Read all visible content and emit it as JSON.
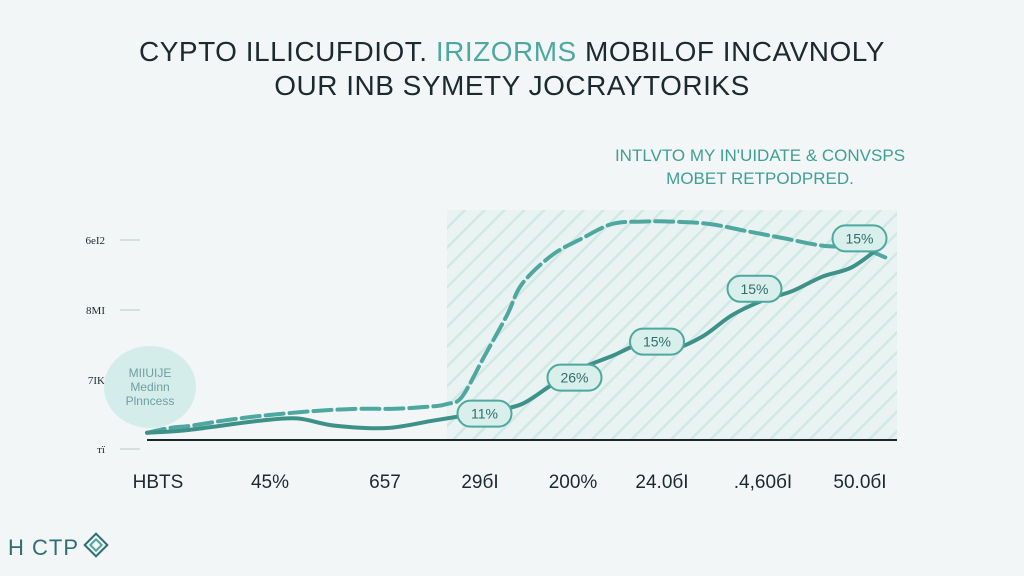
{
  "title": {
    "line1_pre": "CYPTO ILLICUFDIOT. ",
    "line1_accent": "IRIZORMS",
    "line1_post": " MOBILOF INCAVNOLY",
    "line2": "OUR INB SYMETY JOCRAYTORIKS"
  },
  "subtitle": {
    "line1": "INTLVTO MY IN'UIDATE & CONVSPS",
    "line2": "MOBET REТPODPRED."
  },
  "badge": {
    "line1": "MIIUIJE",
    "line2": "Medinn",
    "line3": "Plnncess"
  },
  "logo": {
    "text": "H CTP"
  },
  "colors": {
    "teal": "#4fa8a0",
    "teal_dark": "#3d9189",
    "label_fill": "#d8efec",
    "title": "#1b2a2e",
    "axis": "#1d2628"
  },
  "chart_data": {
    "type": "line",
    "y_tick_labels": [
      "тї",
      "7IK",
      "8MI",
      "6eI2"
    ],
    "x_tick_labels": [
      "HBTS",
      "45%",
      "657",
      "29бІ",
      "200%",
      "24.0бІ",
      ".4,60бІ",
      "50.0бІ"
    ],
    "ylim": [
      0,
      100
    ],
    "series": [
      {
        "style": "dashed",
        "x": [
          0,
          3,
          6,
          10,
          15,
          22,
          28,
          33,
          38,
          40,
          42,
          45,
          48,
          50,
          54,
          58,
          62,
          66,
          70,
          75,
          80,
          85,
          90,
          95,
          98.5
        ],
        "y": [
          3,
          5,
          6,
          8,
          10,
          12,
          13,
          13,
          14,
          15,
          18,
          35,
          52,
          65,
          77,
          84,
          90,
          91,
          91,
          90,
          87,
          84,
          81,
          80,
          76
        ]
      },
      {
        "style": "solid",
        "x": [
          0,
          5,
          10,
          15,
          20,
          25,
          32,
          38,
          42,
          46,
          50,
          54,
          58,
          62,
          66,
          70,
          74,
          78,
          82,
          86,
          90,
          94,
          98
        ],
        "y": [
          3,
          4,
          6,
          8,
          9,
          6,
          5,
          8,
          10,
          12,
          15,
          23,
          30,
          35,
          40,
          38,
          43,
          52,
          58,
          62,
          68,
          72,
          81
        ]
      }
    ],
    "data_labels": [
      {
        "text": "11%",
        "x": 45,
        "y": 11
      },
      {
        "text": "26%",
        "x": 57,
        "y": 26
      },
      {
        "text": "15%",
        "x": 68,
        "y": 41
      },
      {
        "text": "15%",
        "x": 81,
        "y": 63
      },
      {
        "text": "15%",
        "x": 95,
        "y": 84
      }
    ],
    "grid": false,
    "shaded_area": true
  }
}
